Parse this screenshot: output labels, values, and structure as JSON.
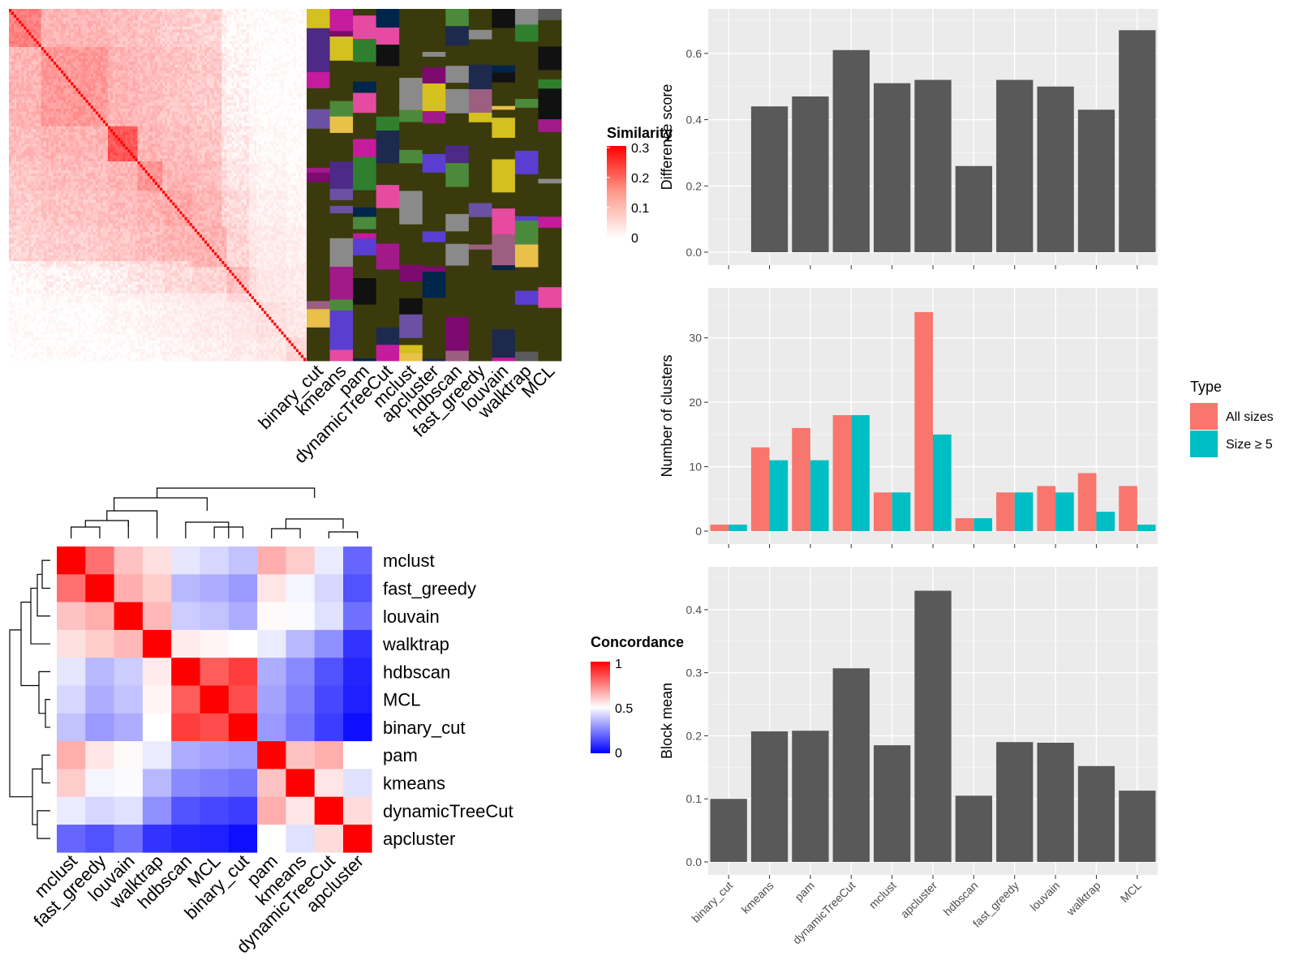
{
  "chart_data": [
    {
      "type": "heatmap",
      "panel": "similarity-heatmap",
      "legend_title": "Similarity",
      "legend_ticks": [
        "0.3",
        "0.2",
        "0.1",
        "0"
      ],
      "color_range": [
        "#ffffff",
        "#ff0000"
      ],
      "value_range": [
        0,
        0.3
      ],
      "annotation_columns": [
        "binary_cut",
        "kmeans",
        "pam",
        "dynamicTreeCut",
        "mclust",
        "apcluster",
        "hdbscan",
        "fast_greedy",
        "louvain",
        "walktrap",
        "MCL"
      ]
    },
    {
      "type": "heatmap",
      "panel": "concordance-heatmap",
      "legend_title": "Concordance",
      "legend_ticks": [
        "1",
        "0.5",
        "0"
      ],
      "value_range": [
        0,
        1
      ],
      "color_low": "#0000ff",
      "color_mid": "#ffffff",
      "color_high": "#ff0000",
      "rows": [
        "mclust",
        "fast_greedy",
        "louvain",
        "walktrap",
        "hdbscan",
        "MCL",
        "binary_cut",
        "pam",
        "kmeans",
        "dynamicTreeCut",
        "apcluster"
      ],
      "columns": [
        "mclust",
        "fast_greedy",
        "louvain",
        "walktrap",
        "hdbscan",
        "MCL",
        "binary_cut",
        "pam",
        "kmeans",
        "dynamicTreeCut",
        "apcluster"
      ],
      "values": [
        [
          1.0,
          0.78,
          0.62,
          0.56,
          0.45,
          0.42,
          0.38,
          0.66,
          0.6,
          0.46,
          0.2
        ],
        [
          0.78,
          1.0,
          0.66,
          0.6,
          0.36,
          0.34,
          0.3,
          0.55,
          0.48,
          0.42,
          0.16
        ],
        [
          0.62,
          0.66,
          1.0,
          0.64,
          0.4,
          0.38,
          0.34,
          0.51,
          0.49,
          0.44,
          0.22
        ],
        [
          0.56,
          0.6,
          0.64,
          1.0,
          0.54,
          0.52,
          0.5,
          0.46,
          0.36,
          0.28,
          0.1
        ],
        [
          0.45,
          0.36,
          0.4,
          0.54,
          1.0,
          0.82,
          0.88,
          0.34,
          0.27,
          0.16,
          0.07
        ],
        [
          0.42,
          0.34,
          0.38,
          0.52,
          0.82,
          1.0,
          0.85,
          0.32,
          0.25,
          0.14,
          0.06
        ],
        [
          0.38,
          0.3,
          0.34,
          0.5,
          0.88,
          0.85,
          1.0,
          0.3,
          0.23,
          0.12,
          0.03
        ],
        [
          0.66,
          0.55,
          0.51,
          0.46,
          0.34,
          0.32,
          0.3,
          1.0,
          0.62,
          0.66,
          0.5
        ],
        [
          0.6,
          0.48,
          0.49,
          0.36,
          0.27,
          0.25,
          0.23,
          0.62,
          1.0,
          0.55,
          0.44
        ],
        [
          0.46,
          0.42,
          0.44,
          0.28,
          0.16,
          0.14,
          0.12,
          0.66,
          0.55,
          1.0,
          0.57
        ],
        [
          0.2,
          0.16,
          0.22,
          0.1,
          0.07,
          0.06,
          0.03,
          0.5,
          0.44,
          0.57,
          1.0
        ]
      ]
    },
    {
      "type": "bar",
      "panel": "difference-score",
      "ylabel": "Difference score",
      "ylim": [
        0,
        0.7
      ],
      "yticks": [
        0.0,
        0.2,
        0.4,
        0.6
      ],
      "categories": [
        "binary_cut",
        "kmeans",
        "pam",
        "dynamicTreeCut",
        "mclust",
        "apcluster",
        "hdbscan",
        "fast_greedy",
        "louvain",
        "walktrap",
        "MCL"
      ],
      "values": [
        0.0,
        0.44,
        0.47,
        0.61,
        0.51,
        0.52,
        0.26,
        0.52,
        0.5,
        0.43,
        0.67
      ]
    },
    {
      "type": "bar",
      "panel": "number-of-clusters",
      "ylabel": "Number of clusters",
      "ylim": [
        0,
        36
      ],
      "yticks": [
        0,
        10,
        20,
        30
      ],
      "categories": [
        "binary_cut",
        "kmeans",
        "pam",
        "dynamicTreeCut",
        "mclust",
        "apcluster",
        "hdbscan",
        "fast_greedy",
        "louvain",
        "walktrap",
        "MCL"
      ],
      "legend_title": "Type",
      "series": [
        {
          "name": "All sizes",
          "color": "#F8766D",
          "values": [
            1,
            13,
            16,
            18,
            6,
            34,
            2,
            6,
            7,
            9,
            7
          ]
        },
        {
          "name": "Size ≥ 5",
          "color": "#00BFC4",
          "values": [
            1,
            11,
            11,
            18,
            6,
            15,
            2,
            6,
            6,
            3,
            1
          ]
        }
      ]
    },
    {
      "type": "bar",
      "panel": "block-mean",
      "ylabel": "Block mean",
      "ylim": [
        0,
        0.45
      ],
      "yticks": [
        0.0,
        0.1,
        0.2,
        0.3,
        0.4
      ],
      "categories": [
        "binary_cut",
        "kmeans",
        "pam",
        "dynamicTreeCut",
        "mclust",
        "apcluster",
        "hdbscan",
        "fast_greedy",
        "louvain",
        "walktrap",
        "MCL"
      ],
      "values": [
        0.1,
        0.207,
        0.208,
        0.307,
        0.185,
        0.43,
        0.105,
        0.19,
        0.189,
        0.152,
        0.113
      ]
    }
  ]
}
